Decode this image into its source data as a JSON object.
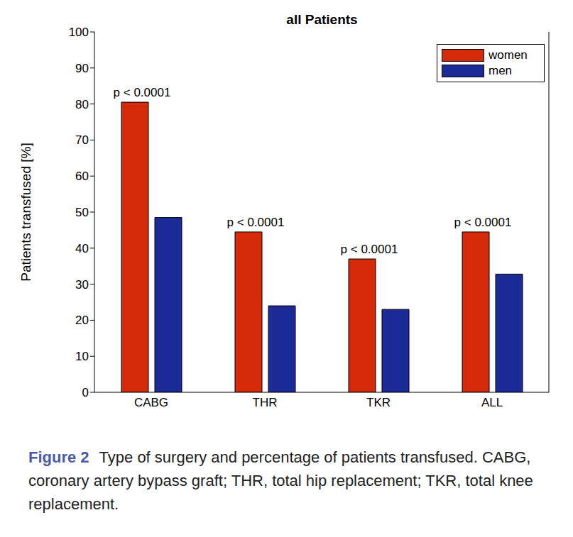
{
  "chart_data": {
    "type": "bar",
    "title": "all Patients",
    "categories": [
      "CABG",
      "THR",
      "TKR",
      "ALL"
    ],
    "series": [
      {
        "name": "women",
        "color": "#d42a0a",
        "values": [
          80.5,
          44.5,
          37,
          44.5
        ]
      },
      {
        "name": "men",
        "color": "#1a2a96",
        "values": [
          48.5,
          24,
          23,
          32.8
        ]
      }
    ],
    "annotations": [
      "p < 0.0001",
      "p < 0.0001",
      "p < 0.0001",
      "p < 0.0001"
    ],
    "y_label": "Patients transfused [%]",
    "ylim": [
      0,
      100
    ],
    "yticks": [
      0,
      10,
      20,
      30,
      40,
      50,
      60,
      70,
      80,
      90,
      100
    ],
    "grid": false,
    "legend": "upper right",
    "caption": {
      "label": "Figure 2",
      "text": "Type of surgery and percentage of patients transfused. CABG, coronary artery bypass graft; THR, total hip replacement; TKR, total knee replacement."
    }
  }
}
